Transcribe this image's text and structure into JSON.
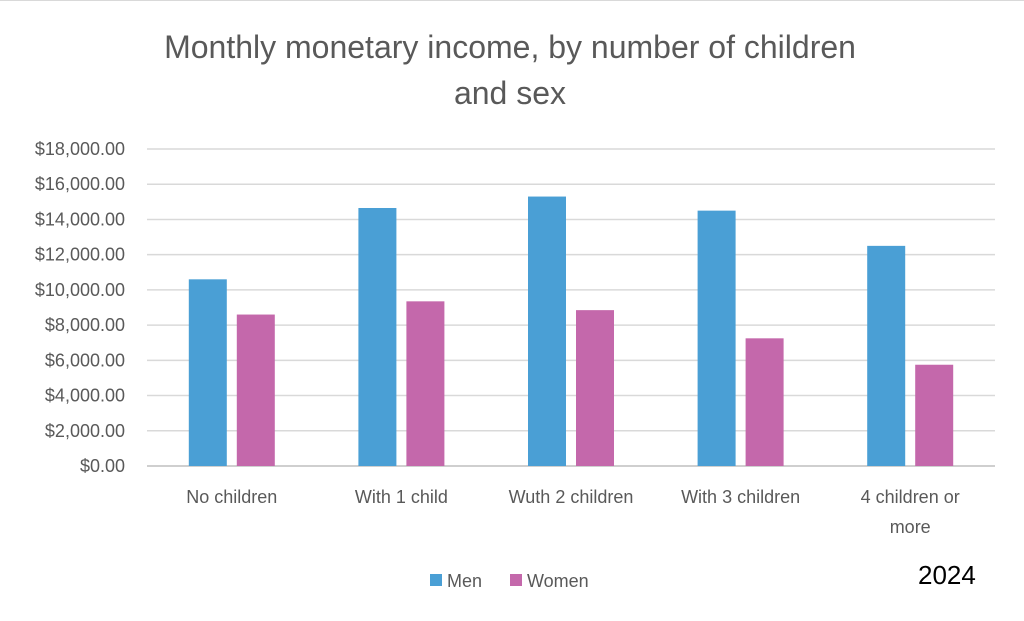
{
  "chart_data": {
    "type": "bar",
    "title": [
      "Monthly monetary income, by number of  children",
      "and sex"
    ],
    "categories": [
      [
        "No children"
      ],
      [
        "With 1 child"
      ],
      [
        "Wuth 2 children"
      ],
      [
        "With 3 children"
      ],
      [
        "4 children or",
        "more"
      ]
    ],
    "series": [
      {
        "name": "Men",
        "color": "#4a9fd5",
        "values": [
          10600,
          14650,
          15300,
          14500,
          12500
        ]
      },
      {
        "name": "Women",
        "color": "#c468ab",
        "values": [
          8600,
          9350,
          8850,
          7250,
          5750
        ]
      }
    ],
    "ylim": [
      0,
      18000
    ],
    "yticks": [
      "$0.00",
      "$2,000.00",
      "$4,000.00",
      "$6,000.00",
      "$8,000.00",
      "$10,000.00",
      "$12,000.00",
      "$14,000.00",
      "$16,000.00",
      "$18,000.00"
    ],
    "ytick_values": [
      0,
      2000,
      4000,
      6000,
      8000,
      10000,
      12000,
      14000,
      16000,
      18000
    ],
    "grid": true,
    "legend": "bottom",
    "annotation": "2024"
  }
}
